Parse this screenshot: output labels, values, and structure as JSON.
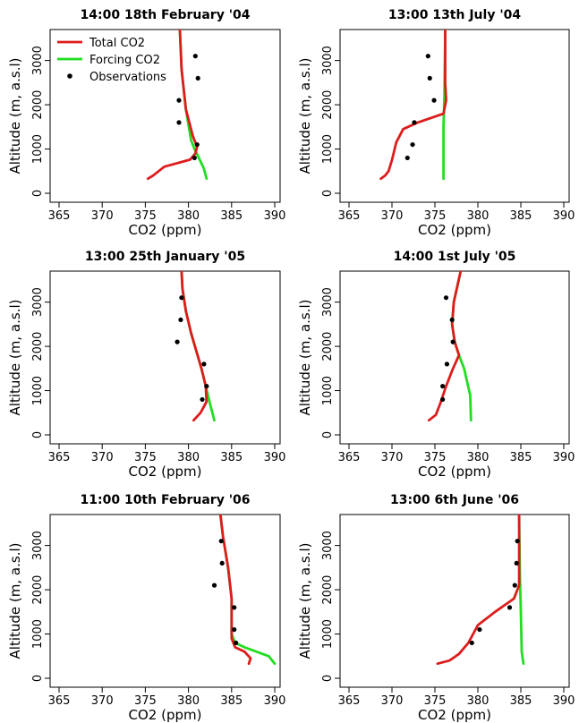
{
  "colors": {
    "total": "#dd1c1c",
    "forcing": "#22dd22",
    "observations": "#000000"
  },
  "legend": {
    "placement": "top-left of first panel",
    "items": [
      {
        "label": "Total CO2",
        "type": "line",
        "color": "#dd1c1c"
      },
      {
        "label": "Forcing CO2",
        "type": "line",
        "color": "#22dd22"
      },
      {
        "label": "Observations",
        "type": "point",
        "color": "#000000"
      }
    ]
  },
  "chart_data": [
    {
      "type": "line",
      "title": "14:00 18th February '04",
      "xlabel": "CO2 (ppm)",
      "ylabel": "Altitude (m, a.s.l)",
      "xlim": [
        365,
        390
      ],
      "ylim": [
        0,
        3700
      ],
      "xticks": [
        "365",
        "370",
        "375",
        "380",
        "385",
        "390"
      ],
      "yticks": [
        "0",
        "1000",
        "2000",
        "3000"
      ],
      "series": [
        {
          "name": "Total CO2",
          "points": [
            [
              375.3,
              330
            ],
            [
              375.9,
              400
            ],
            [
              377.2,
              600
            ],
            [
              380.2,
              760
            ],
            [
              380.8,
              900
            ],
            [
              381.0,
              1050
            ],
            [
              380.5,
              1300
            ],
            [
              379.7,
              1900
            ],
            [
              379.2,
              2800
            ],
            [
              379.0,
              3700
            ]
          ]
        },
        {
          "name": "Forcing CO2",
          "points": [
            [
              382.1,
              330
            ],
            [
              381.8,
              550
            ],
            [
              381.2,
              800
            ],
            [
              380.7,
              1000
            ],
            [
              380.3,
              1200
            ],
            [
              379.7,
              1900
            ],
            [
              379.2,
              2800
            ],
            [
              379.0,
              3700
            ]
          ]
        },
        {
          "name": "Observations",
          "points": [
            [
              380.8,
              3100
            ],
            [
              381.1,
              2600
            ],
            [
              378.9,
              2100
            ],
            [
              378.9,
              1600
            ],
            [
              381.0,
              1100
            ],
            [
              380.7,
              800
            ]
          ]
        }
      ]
    },
    {
      "type": "line",
      "title": "13:00 13th July '04",
      "xlabel": "CO2 (ppm)",
      "ylabel": "Altitude (m, a.s.l)",
      "xlim": [
        365,
        390
      ],
      "ylim": [
        0,
        3700
      ],
      "xticks": [
        "365",
        "370",
        "375",
        "380",
        "385",
        "390"
      ],
      "yticks": [
        "0",
        "1000",
        "2000",
        "3000"
      ],
      "series": [
        {
          "name": "Total CO2",
          "points": [
            [
              368.7,
              330
            ],
            [
              369.2,
              400
            ],
            [
              369.6,
              500
            ],
            [
              370.0,
              750
            ],
            [
              370.5,
              1150
            ],
            [
              371.3,
              1450
            ],
            [
              373.0,
              1600
            ],
            [
              376.0,
              1800
            ],
            [
              376.3,
              2100
            ],
            [
              376.2,
              2500
            ],
            [
              376.2,
              3700
            ]
          ]
        },
        {
          "name": "Forcing CO2",
          "points": [
            [
              376.0,
              330
            ],
            [
              376.0,
              1500
            ],
            [
              376.1,
              2200
            ],
            [
              376.2,
              3700
            ]
          ]
        },
        {
          "name": "Observations",
          "points": [
            [
              374.2,
              3100
            ],
            [
              374.4,
              2600
            ],
            [
              374.9,
              2100
            ],
            [
              372.6,
              1600
            ],
            [
              372.4,
              1100
            ],
            [
              371.8,
              800
            ]
          ]
        }
      ]
    },
    {
      "type": "line",
      "title": "13:00 25th January '05",
      "xlabel": "CO2 (ppm)",
      "ylabel": "Altitude (m, a.s.l)",
      "xlim": [
        365,
        390
      ],
      "ylim": [
        0,
        3700
      ],
      "xticks": [
        "365",
        "370",
        "375",
        "380",
        "385",
        "390"
      ],
      "yticks": [
        "0",
        "1000",
        "2000",
        "3000"
      ],
      "series": [
        {
          "name": "Total CO2",
          "points": [
            [
              380.6,
              330
            ],
            [
              381.4,
              500
            ],
            [
              382.1,
              750
            ],
            [
              382.0,
              1100
            ],
            [
              381.5,
              1500
            ],
            [
              380.3,
              2300
            ],
            [
              379.7,
              2800
            ],
            [
              379.3,
              3300
            ],
            [
              379.2,
              3700
            ]
          ]
        },
        {
          "name": "Forcing CO2",
          "points": [
            [
              383.0,
              330
            ],
            [
              382.5,
              700
            ],
            [
              381.5,
              1500
            ],
            [
              380.3,
              2300
            ],
            [
              379.7,
              2800
            ],
            [
              379.3,
              3300
            ],
            [
              379.2,
              3700
            ]
          ]
        },
        {
          "name": "Observations",
          "points": [
            [
              379.2,
              3100
            ],
            [
              379.1,
              2600
            ],
            [
              378.7,
              2100
            ],
            [
              381.8,
              1600
            ],
            [
              382.1,
              1100
            ],
            [
              381.6,
              800
            ]
          ]
        }
      ]
    },
    {
      "type": "line",
      "title": "14:00 1st July '05",
      "xlabel": "CO2 (ppm)",
      "ylabel": "Altitude (m, a.s.l)",
      "xlim": [
        365,
        390
      ],
      "ylim": [
        0,
        3700
      ],
      "xticks": [
        "365",
        "370",
        "375",
        "380",
        "385",
        "390"
      ],
      "yticks": [
        "0",
        "1000",
        "2000",
        "3000"
      ],
      "series": [
        {
          "name": "Total CO2",
          "points": [
            [
              374.3,
              330
            ],
            [
              375.1,
              450
            ],
            [
              375.6,
              700
            ],
            [
              376.3,
              1100
            ],
            [
              377.1,
              1500
            ],
            [
              377.8,
              1800
            ],
            [
              377.3,
              2100
            ],
            [
              377.0,
              2500
            ],
            [
              377.2,
              3000
            ],
            [
              378.0,
              3700
            ]
          ]
        },
        {
          "name": "Forcing CO2",
          "points": [
            [
              379.2,
              330
            ],
            [
              379.1,
              900
            ],
            [
              378.4,
              1500
            ],
            [
              377.8,
              1800
            ],
            [
              377.3,
              2100
            ],
            [
              377.0,
              2500
            ],
            [
              377.2,
              3000
            ],
            [
              378.0,
              3700
            ]
          ]
        },
        {
          "name": "Observations",
          "points": [
            [
              376.3,
              3100
            ],
            [
              377.0,
              2600
            ],
            [
              377.1,
              2100
            ],
            [
              376.4,
              1600
            ],
            [
              375.9,
              1100
            ],
            [
              375.9,
              800
            ]
          ]
        }
      ]
    },
    {
      "type": "line",
      "title": "11:00 10th February '06",
      "xlabel": "CO2 (ppm)",
      "ylabel": "Altitude (m, a.s.l)",
      "xlim": [
        365,
        390
      ],
      "ylim": [
        0,
        3700
      ],
      "xticks": [
        "365",
        "370",
        "375",
        "380",
        "385",
        "390"
      ],
      "yticks": [
        "0",
        "1000",
        "2000",
        "3000"
      ],
      "series": [
        {
          "name": "Total CO2",
          "points": [
            [
              387.0,
              330
            ],
            [
              387.2,
              450
            ],
            [
              386.5,
              600
            ],
            [
              385.4,
              700
            ],
            [
              385.0,
              900
            ],
            [
              385.0,
              1800
            ],
            [
              384.6,
              2500
            ],
            [
              384.0,
              3200
            ],
            [
              383.7,
              3700
            ]
          ]
        },
        {
          "name": "Forcing CO2",
          "points": [
            [
              390.0,
              330
            ],
            [
              389.3,
              500
            ],
            [
              386.5,
              700
            ],
            [
              385.4,
              800
            ],
            [
              385.0,
              1000
            ],
            [
              385.0,
              1800
            ],
            [
              384.6,
              2500
            ],
            [
              384.0,
              3200
            ],
            [
              383.7,
              3700
            ]
          ]
        },
        {
          "name": "Observations",
          "points": [
            [
              383.8,
              3100
            ],
            [
              383.9,
              2600
            ],
            [
              383.0,
              2100
            ],
            [
              385.3,
              1600
            ],
            [
              385.3,
              1100
            ],
            [
              385.5,
              800
            ]
          ]
        }
      ]
    },
    {
      "type": "line",
      "title": "13:00 6th June '06",
      "xlabel": "CO2 (ppm)",
      "ylabel": "Altitude (m, a.s.l)",
      "xlim": [
        365,
        390
      ],
      "ylim": [
        0,
        3700
      ],
      "xticks": [
        "365",
        "370",
        "375",
        "380",
        "385",
        "390"
      ],
      "yticks": [
        "0",
        "1000",
        "2000",
        "3000"
      ],
      "series": [
        {
          "name": "Total CO2",
          "points": [
            [
              375.3,
              330
            ],
            [
              376.7,
              400
            ],
            [
              377.8,
              550
            ],
            [
              378.9,
              800
            ],
            [
              380.0,
              1200
            ],
            [
              382.0,
              1500
            ],
            [
              384.2,
              1800
            ],
            [
              384.8,
              2100
            ],
            [
              384.8,
              3000
            ],
            [
              384.8,
              3700
            ]
          ]
        },
        {
          "name": "Forcing CO2",
          "points": [
            [
              385.3,
              330
            ],
            [
              385.1,
              600
            ],
            [
              385.0,
              1500
            ],
            [
              384.9,
              2300
            ],
            [
              384.8,
              3700
            ]
          ]
        },
        {
          "name": "Observations",
          "points": [
            [
              384.6,
              3100
            ],
            [
              384.5,
              2600
            ],
            [
              384.3,
              2100
            ],
            [
              383.7,
              1600
            ],
            [
              380.2,
              1100
            ],
            [
              379.3,
              800
            ]
          ]
        }
      ]
    }
  ]
}
